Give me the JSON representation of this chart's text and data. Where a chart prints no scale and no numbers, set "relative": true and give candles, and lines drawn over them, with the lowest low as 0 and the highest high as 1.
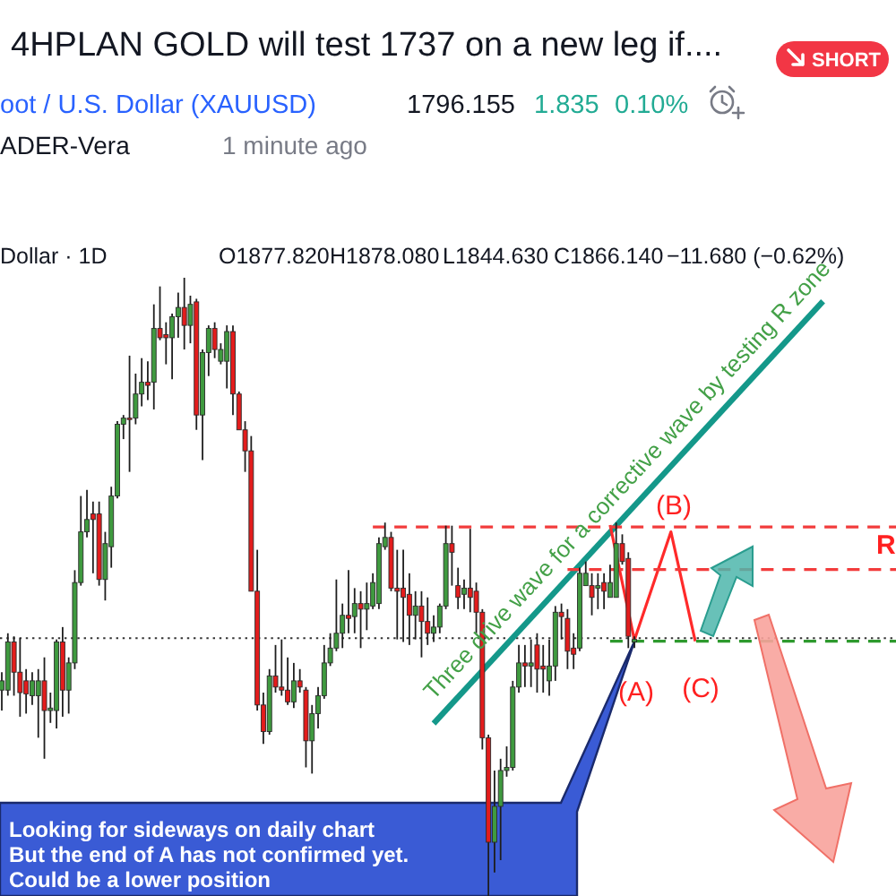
{
  "chart_data": {
    "type": "candlestick",
    "title": "4HPLAN GOLD will test 1737 on a new leg if....",
    "relative": true,
    "categories": [
      null,
      null,
      null,
      null,
      null,
      null,
      null,
      null,
      null,
      null,
      null,
      null,
      null,
      null,
      null,
      null,
      null,
      null,
      null,
      null,
      null,
      null,
      null,
      null,
      null,
      null,
      null,
      null,
      null,
      null,
      null,
      null,
      null,
      null,
      null,
      null,
      null,
      null,
      null,
      null,
      null,
      null,
      null,
      null,
      null,
      null,
      null,
      null,
      null,
      null,
      null,
      null,
      null,
      null,
      null,
      null,
      null,
      null,
      null,
      null,
      null,
      null,
      null,
      null,
      null,
      null,
      null,
      null,
      null,
      null,
      null,
      null,
      null,
      null,
      null,
      null,
      null,
      null,
      null,
      null,
      null,
      null,
      null,
      null,
      null,
      null,
      null,
      null,
      null,
      null,
      null,
      null,
      null,
      null,
      null,
      null,
      null,
      null,
      null,
      null,
      null,
      null,
      null,
      null,
      null,
      null,
      null,
      null,
      null,
      null,
      null,
      null,
      null,
      null,
      null,
      null,
      null,
      null,
      null,
      null,
      null,
      null,
      null,
      null,
      null,
      null,
      null,
      null,
      null,
      null,
      null,
      null,
      null,
      null,
      null,
      null,
      null,
      null,
      null,
      null,
      null,
      null,
      null,
      null,
      null,
      null,
      null,
      null
    ],
    "ohlc": [
      [
        0.333,
        0.362,
        0.3,
        0.348
      ],
      [
        0.333,
        0.425,
        0.324,
        0.411
      ],
      [
        0.411,
        0.42,
        0.324,
        0.362
      ],
      [
        0.362,
        0.417,
        0.29,
        0.329
      ],
      [
        0.348,
        0.367,
        0.295,
        0.327
      ],
      [
        0.324,
        0.362,
        0.309,
        0.348
      ],
      [
        0.324,
        0.367,
        0.256,
        0.348
      ],
      [
        0.348,
        0.386,
        0.222,
        0.3
      ],
      [
        0.3,
        0.329,
        0.28,
        0.304
      ],
      [
        0.3,
        0.415,
        0.271,
        0.411
      ],
      [
        0.411,
        0.435,
        0.29,
        0.333
      ],
      [
        0.333,
        0.386,
        0.295,
        0.377
      ],
      [
        0.377,
        0.527,
        0.367,
        0.507
      ],
      [
        0.507,
        0.647,
        0.502,
        0.589
      ],
      [
        0.589,
        0.657,
        0.58,
        0.609
      ],
      [
        0.618,
        0.638,
        0.522,
        0.609
      ],
      [
        0.618,
        0.638,
        0.502,
        0.512
      ],
      [
        0.512,
        0.589,
        0.478,
        0.57
      ],
      [
        0.565,
        0.662,
        0.531,
        0.647
      ],
      [
        0.647,
        0.768,
        0.643,
        0.763
      ],
      [
        0.763,
        0.778,
        0.739,
        0.773
      ],
      [
        0.773,
        0.874,
        0.686,
        0.771
      ],
      [
        0.773,
        0.845,
        0.763,
        0.812
      ],
      [
        0.812,
        0.87,
        0.792,
        0.831
      ],
      [
        0.831,
        0.865,
        0.802,
        0.826
      ],
      [
        0.831,
        0.957,
        0.787,
        0.918
      ],
      [
        0.918,
        0.986,
        0.899,
        0.903
      ],
      [
        0.908,
        0.928,
        0.86,
        0.903
      ],
      [
        0.903,
        0.942,
        0.836,
        0.937
      ],
      [
        0.937,
        0.976,
        0.903,
        0.952
      ],
      [
        0.952,
        1,
        0.884,
        0.923
      ],
      [
        0.923,
        0.971,
        0.894,
        0.957
      ],
      [
        0.961,
        0.966,
        0.754,
        0.778
      ],
      [
        0.778,
        0.884,
        0.705,
        0.879
      ],
      [
        0.879,
        0.923,
        0.841,
        0.918
      ],
      [
        0.918,
        0.928,
        0.87,
        0.884
      ],
      [
        0.865,
        0.894,
        0.86,
        0.884
      ],
      [
        0.865,
        0.923,
        0.821,
        0.913
      ],
      [
        0.913,
        0.923,
        0.778,
        0.812
      ],
      [
        0.812,
        0.816,
        0.754,
        0.754
      ],
      [
        0.754,
        0.768,
        0.686,
        0.72
      ],
      [
        0.72,
        0.744,
        0.493,
        0.493
      ],
      [
        0.493,
        0.56,
        0.3,
        0.309
      ],
      [
        0.309,
        0.329,
        0.246,
        0.266
      ],
      [
        0.266,
        0.367,
        0.261,
        0.356
      ],
      [
        0.356,
        0.406,
        0.329,
        0.338
      ],
      [
        0.338,
        0.415,
        0.324,
        0.333
      ],
      [
        0.333,
        0.386,
        0.309,
        0.314
      ],
      [
        0.314,
        0.377,
        0.304,
        0.348
      ],
      [
        0.348,
        0.367,
        0.329,
        0.338
      ],
      [
        0.333,
        0.338,
        0.208,
        0.251
      ],
      [
        0.251,
        0.309,
        0.198,
        0.295
      ],
      [
        0.295,
        0.338,
        0.271,
        0.324
      ],
      [
        0.324,
        0.406,
        0.319,
        0.377
      ],
      [
        0.377,
        0.425,
        0.372,
        0.401
      ],
      [
        0.401,
        0.512,
        0.396,
        0.425
      ],
      [
        0.425,
        0.473,
        0.401,
        0.454
      ],
      [
        0.454,
        0.527,
        0.425,
        0.449
      ],
      [
        0.452,
        0.498,
        0.425,
        0.473
      ],
      [
        0.473,
        0.493,
        0.401,
        0.464
      ],
      [
        0.464,
        0.507,
        0.43,
        0.473
      ],
      [
        0.469,
        0.522,
        0.464,
        0.507
      ],
      [
        0.473,
        0.58,
        0.464,
        0.57
      ],
      [
        0.565,
        0.604,
        0.56,
        0.58
      ],
      [
        0.58,
        0.589,
        0.493,
        0.498
      ],
      [
        0.498,
        0.56,
        0.415,
        0.493
      ],
      [
        0.498,
        0.56,
        0.411,
        0.483
      ],
      [
        0.488,
        0.522,
        0.406,
        0.454
      ],
      [
        0.454,
        0.493,
        0.415,
        0.469
      ],
      [
        0.469,
        0.493,
        0.386,
        0.444
      ],
      [
        0.444,
        0.483,
        0.406,
        0.425
      ],
      [
        0.425,
        0.454,
        0.411,
        0.435
      ],
      [
        0.435,
        0.473,
        0.425,
        0.469
      ],
      [
        0.469,
        0.599,
        0.464,
        0.57
      ],
      [
        0.57,
        0.599,
        0.502,
        0.556
      ],
      [
        0.502,
        0.531,
        0.464,
        0.483
      ],
      [
        0.488,
        0.512,
        0.464,
        0.498
      ],
      [
        0.498,
        0.594,
        0.459,
        0.483
      ],
      [
        0.493,
        0.507,
        0.425,
        0.459
      ],
      [
        0.459,
        0.464,
        0.237,
        0.256
      ],
      [
        0.256,
        0.261,
        0,
        0.087
      ],
      [
        0.087,
        0.203,
        0.038,
        0.145
      ],
      [
        0.145,
        0.222,
        0.058,
        0.203
      ],
      [
        0.203,
        0.242,
        0.193,
        0.208
      ],
      [
        0.208,
        0.348,
        0.203,
        0.338
      ],
      [
        0.338,
        0.406,
        0.329,
        0.377
      ],
      [
        0.377,
        0.406,
        0.338,
        0.372
      ],
      [
        0.372,
        0.415,
        0.338,
        0.377
      ],
      [
        0.406,
        0.425,
        0.329,
        0.367
      ],
      [
        0.372,
        0.406,
        0.329,
        0.367
      ],
      [
        0.348,
        0.415,
        0.324,
        0.372
      ],
      [
        0.372,
        0.469,
        0.348,
        0.459
      ],
      [
        0.459,
        0.473,
        0.415,
        0.452
      ],
      [
        0.449,
        0.464,
        0.367,
        0.396
      ],
      [
        0.401,
        0.425,
        0.367,
        0.391
      ],
      [
        0.401,
        0.531,
        0.396,
        0.522
      ],
      [
        0.502,
        0.541,
        0.502,
        0.522
      ],
      [
        0.502,
        0.522,
        0.454,
        0.483
      ],
      [
        0.498,
        0.522,
        0.464,
        0.502
      ],
      [
        0.507,
        0.522,
        0.464,
        0.493
      ],
      [
        0.483,
        0.536,
        0.483,
        0.507
      ],
      [
        0.483,
        0.604,
        0.483,
        0.57
      ],
      [
        0.57,
        0.585,
        0.536,
        0.541
      ],
      [
        0.546,
        0.556,
        0.401,
        0.42
      ],
      [
        0.411,
        0.42,
        0.401,
        0.415
      ],
      null,
      null,
      null,
      null,
      null,
      null,
      null,
      null,
      null,
      null,
      null,
      null,
      null,
      null,
      null,
      null,
      null,
      null,
      null,
      null,
      null,
      null,
      null,
      null,
      null,
      null,
      null,
      null,
      null,
      null,
      null,
      null,
      null,
      null,
      null,
      null,
      null,
      null,
      null,
      null,
      null,
      null,
      null
    ],
    "colors": [
      "#3f9a3f",
      "#3f9a3f",
      "#e31c1c",
      "#e31c1c",
      "#e31c1c",
      "#3f9a3f",
      "#3f9a3f",
      "#e31c1c",
      "#3f9a3f",
      "#3f9a3f",
      "#e31c1c",
      "#3f9a3f",
      "#3f9a3f",
      "#3f9a3f",
      "#3f9a3f",
      "#e31c1c",
      "#e31c1c",
      "#3f9a3f",
      "#3f9a3f",
      "#3f9a3f",
      "#3f9a3f",
      "#e31c1c",
      "#3f9a3f",
      "#3f9a3f",
      "#e31c1c",
      "#3f9a3f",
      "#e31c1c",
      "#e31c1c",
      "#3f9a3f",
      "#3f9a3f",
      "#e31c1c",
      "#3f9a3f",
      "#e31c1c",
      "#3f9a3f",
      "#3f9a3f",
      "#e31c1c",
      "#3f9a3f",
      "#3f9a3f",
      "#e31c1c",
      "#e31c1c",
      "#e31c1c",
      "#e31c1c",
      "#e31c1c",
      "#e31c1c",
      "#3f9a3f",
      "#e31c1c",
      "#e31c1c",
      "#e31c1c",
      "#3f9a3f",
      "#e31c1c",
      "#e31c1c",
      "#3f9a3f",
      "#3f9a3f",
      "#3f9a3f",
      "#3f9a3f",
      "#3f9a3f",
      "#3f9a3f",
      "#e31c1c",
      "#3f9a3f",
      "#e31c1c",
      "#3f9a3f",
      "#3f9a3f",
      "#3f9a3f",
      "#3f9a3f",
      "#e31c1c",
      "#e31c1c",
      "#e31c1c",
      "#e31c1c",
      "#3f9a3f",
      "#e31c1c",
      "#e31c1c",
      "#3f9a3f",
      "#3f9a3f",
      "#3f9a3f",
      "#e31c1c",
      "#e31c1c",
      "#3f9a3f",
      "#e31c1c",
      "#e31c1c",
      "#e31c1c",
      "#e31c1c",
      "#3f9a3f",
      "#3f9a3f",
      "#3f9a3f",
      "#3f9a3f",
      "#3f9a3f",
      "#e31c1c",
      "#3f9a3f",
      "#e31c1c",
      "#e31c1c",
      "#3f9a3f",
      "#3f9a3f",
      "#e31c1c",
      "#e31c1c",
      "#e31c1c",
      "#3f9a3f",
      "#3f9a3f",
      "#e31c1c",
      "#3f9a3f",
      "#e31c1c",
      "#3f9a3f",
      "#3f9a3f",
      "#e31c1c",
      "#e31c1c",
      "#3f9a3f",
      null,
      null,
      null,
      null,
      null,
      null,
      null,
      null,
      null,
      null,
      null,
      null,
      null,
      null,
      null,
      null,
      null,
      null,
      null,
      null,
      null,
      null,
      null,
      null,
      null,
      null,
      null,
      null,
      null,
      null,
      null,
      null,
      null,
      null,
      null,
      null,
      null,
      null,
      null,
      null,
      null,
      null,
      null
    ],
    "series": [
      {
        "type": "line",
        "color": "#14988a",
        "values": [
          null,
          null,
          null,
          null,
          null,
          null,
          null,
          null,
          null,
          null,
          null,
          null,
          null,
          null,
          null,
          null,
          null,
          null,
          null,
          null,
          null,
          null,
          null,
          null,
          null,
          null,
          null,
          null,
          null,
          null,
          null,
          null,
          null,
          null,
          null,
          null,
          null,
          null,
          null,
          null,
          null,
          null,
          null,
          null,
          null,
          null,
          null,
          null,
          null,
          null,
          null,
          null,
          null,
          null,
          null,
          null,
          null,
          null,
          null,
          null,
          null,
          null,
          null,
          null,
          null,
          null,
          null,
          null,
          null,
          null,
          null,
          0.279,
          null,
          null,
          null,
          null,
          null,
          null,
          null,
          null,
          null,
          null,
          null,
          null,
          null,
          null,
          null,
          null,
          null,
          null,
          null,
          null,
          null,
          null,
          null,
          null,
          null,
          null,
          null,
          null,
          null,
          null,
          null,
          null,
          null,
          null,
          null,
          null,
          null,
          null,
          null,
          null,
          null,
          null,
          null,
          null,
          null,
          null,
          null,
          null,
          null,
          null,
          null,
          null,
          null,
          null,
          null,
          null,
          null,
          null,
          null,
          null,
          null,
          null,
          null,
          0.962,
          null,
          null,
          null,
          null,
          null,
          null,
          null,
          null,
          null,
          null,
          null,
          null
        ]
      },
      {
        "type": "line",
        "color": "#ff2a2a",
        "values": [
          null,
          null,
          null,
          null,
          null,
          null,
          null,
          null,
          null,
          null,
          null,
          null,
          null,
          null,
          null,
          null,
          null,
          null,
          null,
          null,
          null,
          null,
          null,
          null,
          null,
          null,
          null,
          null,
          null,
          null,
          null,
          null,
          null,
          null,
          null,
          null,
          null,
          null,
          null,
          null,
          null,
          null,
          null,
          null,
          null,
          null,
          null,
          null,
          null,
          null,
          null,
          null,
          null,
          null,
          null,
          null,
          null,
          null,
          null,
          null,
          null,
          null,
          null,
          null,
          null,
          null,
          null,
          null,
          null,
          null,
          null,
          null,
          null,
          null,
          null,
          null,
          null,
          null,
          null,
          null,
          null,
          null,
          null,
          null,
          null,
          null,
          null,
          null,
          null,
          null,
          null,
          null,
          null,
          null,
          null,
          null,
          null,
          null,
          null,
          null,
          0.6,
          null,
          null,
          null,
          0.414,
          null,
          null,
          null,
          null,
          null,
          0.589,
          null,
          null,
          null,
          0.412,
          null,
          null,
          null,
          null,
          null,
          null,
          null,
          null,
          null,
          null,
          null,
          null,
          null,
          null,
          null,
          null,
          null,
          null,
          null,
          null,
          null,
          null,
          null,
          null,
          null,
          null,
          null,
          null,
          null,
          null,
          null,
          null,
          null
        ]
      },
      {
        "type": "line",
        "color": "#f23c3c",
        "line_style": "dashed",
        "values": [
          null,
          null,
          null,
          null,
          null,
          null,
          null,
          null,
          null,
          null,
          null,
          null,
          null,
          null,
          null,
          null,
          null,
          null,
          null,
          null,
          null,
          null,
          null,
          null,
          null,
          null,
          null,
          null,
          null,
          null,
          null,
          null,
          null,
          null,
          null,
          null,
          null,
          null,
          null,
          null,
          null,
          null,
          null,
          null,
          null,
          null,
          null,
          null,
          null,
          null,
          null,
          null,
          null,
          null,
          null,
          null,
          null,
          null,
          null,
          null,
          null,
          0.597,
          null,
          null,
          null,
          null,
          null,
          null,
          null,
          null,
          null,
          null,
          null,
          null,
          null,
          null,
          null,
          null,
          null,
          null,
          null,
          null,
          null,
          null,
          null,
          null,
          null,
          null,
          null,
          null,
          null,
          null,
          null,
          null,
          null,
          null,
          null,
          null,
          null,
          null,
          null,
          null,
          null,
          null,
          null,
          null,
          null,
          null,
          null,
          null,
          null,
          null,
          null,
          null,
          null,
          null,
          null,
          null,
          null,
          null,
          null,
          null,
          null,
          null,
          null,
          null,
          null,
          null,
          null,
          null,
          null,
          null,
          null,
          null,
          null,
          null,
          null,
          null,
          null,
          null,
          null,
          null,
          null,
          null,
          null,
          null,
          null,
          0.597
        ]
      },
      {
        "type": "line",
        "color": "#f23c3c",
        "line_style": "dashed",
        "values": [
          null,
          null,
          null,
          null,
          null,
          null,
          null,
          null,
          null,
          null,
          null,
          null,
          null,
          null,
          null,
          null,
          null,
          null,
          null,
          null,
          null,
          null,
          null,
          null,
          null,
          null,
          null,
          null,
          null,
          null,
          null,
          null,
          null,
          null,
          null,
          null,
          null,
          null,
          null,
          null,
          null,
          null,
          null,
          null,
          null,
          null,
          null,
          null,
          null,
          null,
          null,
          null,
          null,
          null,
          null,
          null,
          null,
          null,
          null,
          null,
          null,
          null,
          null,
          null,
          null,
          null,
          null,
          null,
          null,
          null,
          null,
          null,
          null,
          null,
          null,
          null,
          null,
          null,
          null,
          null,
          null,
          null,
          null,
          null,
          null,
          null,
          null,
          null,
          null,
          null,
          null,
          null,
          null,
          0.528,
          null,
          null,
          null,
          null,
          null,
          null,
          null,
          null,
          null,
          null,
          null,
          null,
          null,
          null,
          null,
          null,
          null,
          null,
          null,
          null,
          null,
          null,
          null,
          null,
          null,
          null,
          null,
          null,
          null,
          null,
          null,
          null,
          null,
          null,
          null,
          null,
          null,
          null,
          null,
          null,
          null,
          null,
          null,
          null,
          null,
          null,
          null,
          null,
          null,
          null,
          null,
          null,
          null,
          0.528
        ]
      },
      {
        "type": "line",
        "color": "#2e9a2e",
        "line_style": "dashed",
        "values": [
          null,
          null,
          null,
          null,
          null,
          null,
          null,
          null,
          null,
          null,
          null,
          null,
          null,
          null,
          null,
          null,
          null,
          null,
          null,
          null,
          null,
          null,
          null,
          null,
          null,
          null,
          null,
          null,
          null,
          null,
          null,
          null,
          null,
          null,
          null,
          null,
          null,
          null,
          null,
          null,
          null,
          null,
          null,
          null,
          null,
          null,
          null,
          null,
          null,
          null,
          null,
          null,
          null,
          null,
          null,
          null,
          null,
          null,
          null,
          null,
          null,
          null,
          null,
          null,
          null,
          null,
          null,
          null,
          null,
          null,
          null,
          null,
          null,
          null,
          null,
          null,
          null,
          null,
          null,
          null,
          null,
          null,
          null,
          null,
          null,
          null,
          null,
          null,
          null,
          null,
          null,
          null,
          null,
          null,
          null,
          null,
          null,
          null,
          null,
          null,
          0.412,
          null,
          null,
          null,
          null,
          null,
          null,
          null,
          null,
          null,
          null,
          null,
          null,
          null,
          null,
          null,
          null,
          null,
          null,
          null,
          null,
          null,
          null,
          null,
          null,
          null,
          null,
          null,
          null,
          null,
          null,
          null,
          null,
          null,
          null,
          null,
          null,
          null,
          null,
          null,
          null,
          null,
          null,
          null,
          null,
          null,
          null,
          0.412
        ]
      }
    ],
    "ref_lines": [
      {
        "axis": "y",
        "value": 0.417,
        "color": "#333333",
        "line_style": "dotted"
      }
    ],
    "annotations": [
      "SHORT",
      "oot / U.S. Dollar (XAUUSD)",
      "1796.155",
      "1.835",
      "0.10%",
      "ADER-Vera",
      "1 minute ago",
      "Dollar · 1D",
      "O1877.820",
      "H1878.080",
      "L1844.630",
      "C1866.140",
      "−11.680 (−0.62%)",
      "Three drive wave for a corrective wave by testing R zone",
      "(B)",
      "(A)",
      "(C)",
      "R",
      "Looking for sideways on daily chart",
      "But the end of A has not confirmed yet.",
      "Could be a lower position"
    ]
  }
}
